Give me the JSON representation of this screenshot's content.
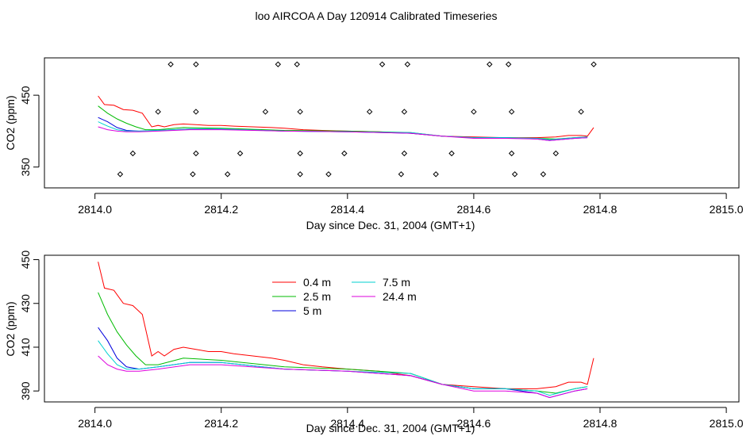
{
  "title": "loo AIRCOA A  Day 120914  Calibrated Timeseries",
  "colors": {
    "background": "#ffffff",
    "axes": "#000000"
  },
  "chart_data": [
    {
      "type": "line",
      "xlabel": "Day since Dec. 31, 2004 (GMT+1)",
      "ylabel": "CO2 (ppm)",
      "xlim": [
        2813.92,
        2815.02
      ],
      "ylim": [
        321,
        502
      ],
      "x_ticks": [
        "2814.0",
        "2814.2",
        "2814.4",
        "2814.6",
        "2814.8",
        "2815.0"
      ],
      "y_ticks": [
        "350",
        "450"
      ],
      "grid": false,
      "legend": "none",
      "series": [
        {
          "color": "#ff0000",
          "x": [
            2814.005,
            2814.015,
            2814.03,
            2814.045,
            2814.06,
            2814.075,
            2814.09,
            2814.1,
            2814.11,
            2814.125,
            2814.14,
            2814.16,
            2814.18,
            2814.2,
            2814.22,
            2814.25,
            2814.28,
            2814.3,
            2814.33,
            2814.36,
            2814.4,
            2814.45,
            2814.5,
            2814.55,
            2814.6,
            2814.65,
            2814.7,
            2814.73,
            2814.75,
            2814.77,
            2814.78,
            2814.79
          ],
          "values": [
            449,
            437,
            436,
            430,
            429,
            425,
            406,
            408,
            406,
            409,
            410,
            409,
            408,
            408,
            407,
            406,
            405,
            404,
            402,
            401,
            400,
            399,
            397,
            393,
            392,
            391,
            391,
            392,
            394,
            394,
            393,
            405
          ]
        },
        {
          "color": "#00bb00",
          "x": [
            2814.005,
            2814.02,
            2814.035,
            2814.05,
            2814.065,
            2814.08,
            2814.1,
            2814.14,
            2814.2,
            2814.3,
            2814.4,
            2814.5,
            2814.55,
            2814.6,
            2814.65,
            2814.7,
            2814.73,
            2814.76,
            2814.78
          ],
          "values": [
            435,
            425,
            417,
            411,
            406,
            402,
            402,
            405,
            404,
            401,
            400,
            398,
            393,
            391,
            391,
            390,
            389,
            391,
            392
          ]
        },
        {
          "color": "#0000dd",
          "x": [
            2814.005,
            2814.02,
            2814.035,
            2814.05,
            2814.07,
            2814.1,
            2814.15,
            2814.2,
            2814.3,
            2814.4,
            2814.5,
            2814.55,
            2814.6,
            2814.65,
            2814.7,
            2814.72,
            2814.76,
            2814.78
          ],
          "values": [
            419,
            413,
            405,
            401,
            400,
            401,
            403,
            403,
            400,
            399,
            397,
            393,
            391,
            391,
            389,
            387,
            390,
            391
          ]
        },
        {
          "color": "#00d0d0",
          "x": [
            2814.005,
            2814.02,
            2814.035,
            2814.05,
            2814.07,
            2814.1,
            2814.15,
            2814.2,
            2814.3,
            2814.4,
            2814.5,
            2814.55,
            2814.6,
            2814.65,
            2814.7,
            2814.72,
            2814.76,
            2814.78
          ],
          "values": [
            413,
            407,
            402,
            400,
            400,
            401,
            403,
            403,
            400,
            399,
            398,
            393,
            391,
            391,
            390,
            388,
            391,
            392
          ]
        },
        {
          "color": "#dd00dd",
          "x": [
            2814.005,
            2814.02,
            2814.035,
            2814.05,
            2814.07,
            2814.1,
            2814.15,
            2814.2,
            2814.3,
            2814.4,
            2814.5,
            2814.55,
            2814.6,
            2814.65,
            2814.7,
            2814.72,
            2814.76,
            2814.78
          ],
          "values": [
            406,
            402,
            400,
            399,
            399,
            400,
            402,
            402,
            400,
            399,
            397,
            393,
            390,
            390,
            389,
            387,
            390,
            391
          ]
        }
      ],
      "markers": {
        "symbol": "open-diamond",
        "x": [
          2814.12,
          2814.16,
          2814.29,
          2814.32,
          2814.455,
          2814.495,
          2814.625,
          2814.655,
          2814.79,
          2814.1,
          2814.16,
          2814.27,
          2814.325,
          2814.435,
          2814.49,
          2814.6,
          2814.66,
          2814.77,
          2814.06,
          2814.16,
          2814.23,
          2814.325,
          2814.395,
          2814.49,
          2814.565,
          2814.66,
          2814.73,
          2814.04,
          2814.155,
          2814.21,
          2814.325,
          2814.37,
          2814.485,
          2814.54,
          2814.665,
          2814.71
        ],
        "values": [
          493,
          493,
          493,
          493,
          493,
          493,
          493,
          493,
          493,
          427,
          427,
          427,
          427,
          427,
          427,
          427,
          427,
          427,
          369,
          369,
          369,
          369,
          369,
          369,
          369,
          369,
          369,
          340,
          340,
          340,
          340,
          340,
          340,
          340,
          340,
          340
        ]
      }
    },
    {
      "type": "line",
      "xlabel": "Day since Dec. 31, 2004 (GMT+1)",
      "ylabel": "CO2 (ppm)",
      "xlim": [
        2813.92,
        2815.02
      ],
      "ylim": [
        385,
        452
      ],
      "x_ticks": [
        "2814.0",
        "2814.2",
        "2814.4",
        "2814.6",
        "2814.8",
        "2815.0"
      ],
      "y_ticks": [
        "390",
        "410",
        "430",
        "450"
      ],
      "grid": false,
      "legend": "top-left",
      "series": [
        {
          "name": "0.4 m",
          "color": "#ff0000",
          "x": [
            2814.005,
            2814.015,
            2814.03,
            2814.045,
            2814.06,
            2814.075,
            2814.09,
            2814.1,
            2814.11,
            2814.125,
            2814.14,
            2814.16,
            2814.18,
            2814.2,
            2814.22,
            2814.25,
            2814.28,
            2814.3,
            2814.33,
            2814.36,
            2814.4,
            2814.45,
            2814.5,
            2814.55,
            2814.6,
            2814.65,
            2814.7,
            2814.73,
            2814.75,
            2814.77,
            2814.78,
            2814.79
          ],
          "values": [
            449,
            437,
            436,
            430,
            429,
            425,
            406,
            408,
            406,
            409,
            410,
            409,
            408,
            408,
            407,
            406,
            405,
            404,
            402,
            401,
            400,
            399,
            397,
            393,
            392,
            391,
            391,
            392,
            394,
            394,
            393,
            405
          ]
        },
        {
          "name": "2.5 m",
          "color": "#00bb00",
          "x": [
            2814.005,
            2814.02,
            2814.035,
            2814.05,
            2814.065,
            2814.08,
            2814.1,
            2814.14,
            2814.2,
            2814.3,
            2814.4,
            2814.5,
            2814.55,
            2814.6,
            2814.65,
            2814.7,
            2814.73,
            2814.76,
            2814.78
          ],
          "values": [
            435,
            425,
            417,
            411,
            406,
            402,
            402,
            405,
            404,
            401,
            400,
            398,
            393,
            391,
            391,
            390,
            389,
            391,
            392
          ]
        },
        {
          "name": "5 m",
          "color": "#0000dd",
          "x": [
            2814.005,
            2814.02,
            2814.035,
            2814.05,
            2814.07,
            2814.1,
            2814.15,
            2814.2,
            2814.3,
            2814.4,
            2814.5,
            2814.55,
            2814.6,
            2814.65,
            2814.7,
            2814.72,
            2814.76,
            2814.78
          ],
          "values": [
            419,
            413,
            405,
            401,
            400,
            401,
            403,
            403,
            400,
            399,
            397,
            393,
            391,
            391,
            389,
            387,
            390,
            391
          ]
        },
        {
          "name": "7.5 m",
          "color": "#00d0d0",
          "x": [
            2814.005,
            2814.02,
            2814.035,
            2814.05,
            2814.07,
            2814.1,
            2814.15,
            2814.2,
            2814.3,
            2814.4,
            2814.5,
            2814.55,
            2814.6,
            2814.65,
            2814.7,
            2814.72,
            2814.76,
            2814.78
          ],
          "values": [
            413,
            407,
            402,
            400,
            400,
            401,
            403,
            403,
            400,
            399,
            398,
            393,
            391,
            391,
            390,
            388,
            391,
            392
          ]
        },
        {
          "name": "24.4 m",
          "color": "#dd00dd",
          "x": [
            2814.005,
            2814.02,
            2814.035,
            2814.05,
            2814.07,
            2814.1,
            2814.15,
            2814.2,
            2814.3,
            2814.4,
            2814.5,
            2814.55,
            2814.6,
            2814.65,
            2814.7,
            2814.72,
            2814.76,
            2814.78
          ],
          "values": [
            406,
            402,
            400,
            399,
            399,
            400,
            402,
            402,
            400,
            399,
            397,
            393,
            390,
            390,
            389,
            387,
            390,
            391
          ]
        }
      ]
    }
  ]
}
